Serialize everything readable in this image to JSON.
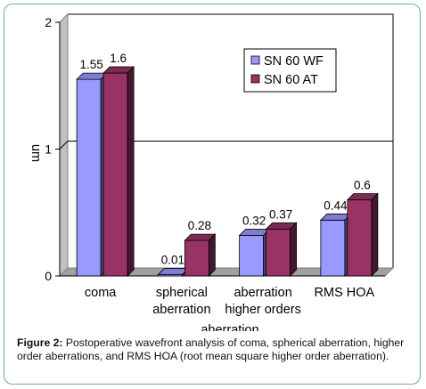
{
  "chart_data": {
    "type": "bar",
    "title": "",
    "xlabel": "aberration",
    "ylabel": "um",
    "categories": [
      [
        "coma"
      ],
      [
        "spherical",
        "aberration"
      ],
      [
        "aberration",
        "higher orders"
      ],
      [
        "RMS HOA"
      ]
    ],
    "series": [
      {
        "name": "SN 60 WF",
        "values": [
          1.55,
          0.01,
          0.32,
          0.44
        ],
        "labels": [
          "1.55",
          "0.01",
          "0.32",
          "0.44"
        ],
        "color": "#9999ff"
      },
      {
        "name": "SN 60 AT",
        "values": [
          1.6,
          0.28,
          0.37,
          0.6
        ],
        "labels": [
          "1.6",
          "0.28",
          "0.37",
          "0.6"
        ],
        "color": "#993366"
      }
    ],
    "y_ticks": [
      0,
      1,
      2
    ],
    "ylim": [
      0,
      2
    ],
    "grid": true,
    "legend_position": "top-right",
    "style": "3d"
  },
  "caption": {
    "label": "Figure 2:",
    "text": "Postoperative wavefront analysis of coma, spherical aberration, higher order aberrations, and RMS HOA (root mean square higher order aberration)."
  }
}
